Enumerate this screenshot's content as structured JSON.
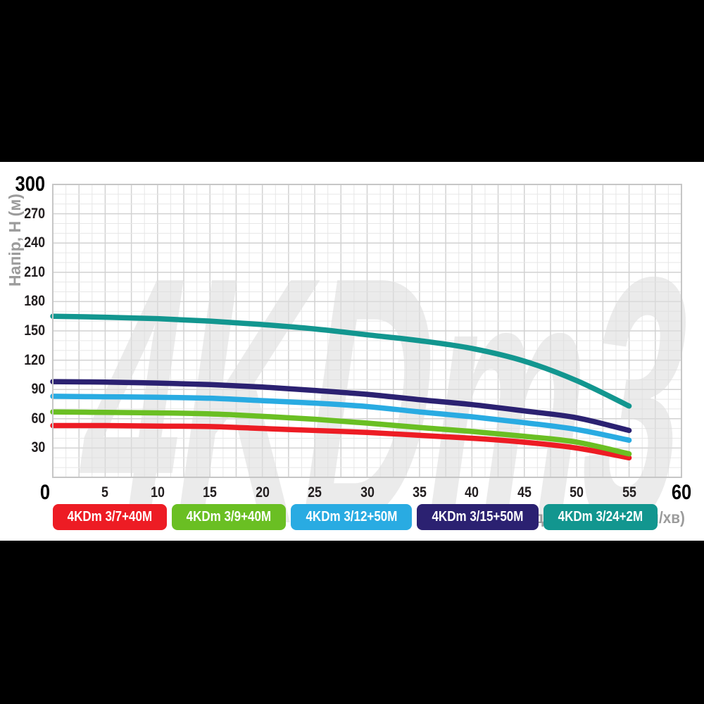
{
  "page": {
    "background": "#000000",
    "panel_background": "#ffffff",
    "tick_color": "#231f20",
    "axis_title_color": "#9b9b9b",
    "grid_minor_color": "#e7e7e7",
    "grid_major_color": "#d2d2d2",
    "grid_border_color": "#c6c6c6",
    "watermark_color": "#dddddd"
  },
  "chart_data": {
    "type": "line",
    "watermark": "4KDm3",
    "xlabel": "Продуктивність, Q (л/хв)",
    "ylabel": "Напір, H (м)",
    "xlim": [
      0,
      60
    ],
    "ylim": [
      0,
      300
    ],
    "x_ticks": [
      0,
      5,
      10,
      15,
      20,
      25,
      30,
      35,
      40,
      45,
      50,
      55,
      60
    ],
    "y_ticks": [
      300,
      270,
      240,
      210,
      180,
      150,
      120,
      90,
      60,
      30
    ],
    "grid": true,
    "legend_position": "bottom",
    "x": [
      0,
      5,
      10,
      15,
      20,
      25,
      30,
      35,
      40,
      45,
      50,
      55
    ],
    "series": [
      {
        "name": "4KDm 3/7+40M",
        "color": "#ed1c24",
        "values": [
          53,
          53,
          52.5,
          52,
          50,
          48,
          46,
          43,
          40,
          36,
          30,
          20
        ]
      },
      {
        "name": "4KDm 3/9+40M",
        "color": "#6abf23",
        "values": [
          67,
          66.5,
          66,
          65,
          62.5,
          59.5,
          55.5,
          51,
          47,
          42,
          36,
          24
        ]
      },
      {
        "name": "4KDm 3/12+50M",
        "color": "#29abe2",
        "values": [
          83,
          82.5,
          82,
          81,
          78.5,
          76,
          72.5,
          67,
          62,
          56,
          49,
          38
        ]
      },
      {
        "name": "4KDm 3/15+50M",
        "color": "#2b2171",
        "values": [
          98,
          97.5,
          96.5,
          95,
          92.5,
          89,
          85,
          79.5,
          74.5,
          68,
          61,
          48
        ]
      },
      {
        "name": "4KDm 3/24+2M",
        "color": "#12968f",
        "values": [
          165,
          164,
          162.5,
          160,
          156.5,
          152,
          146,
          140,
          132,
          119,
          99,
          73
        ]
      }
    ]
  }
}
